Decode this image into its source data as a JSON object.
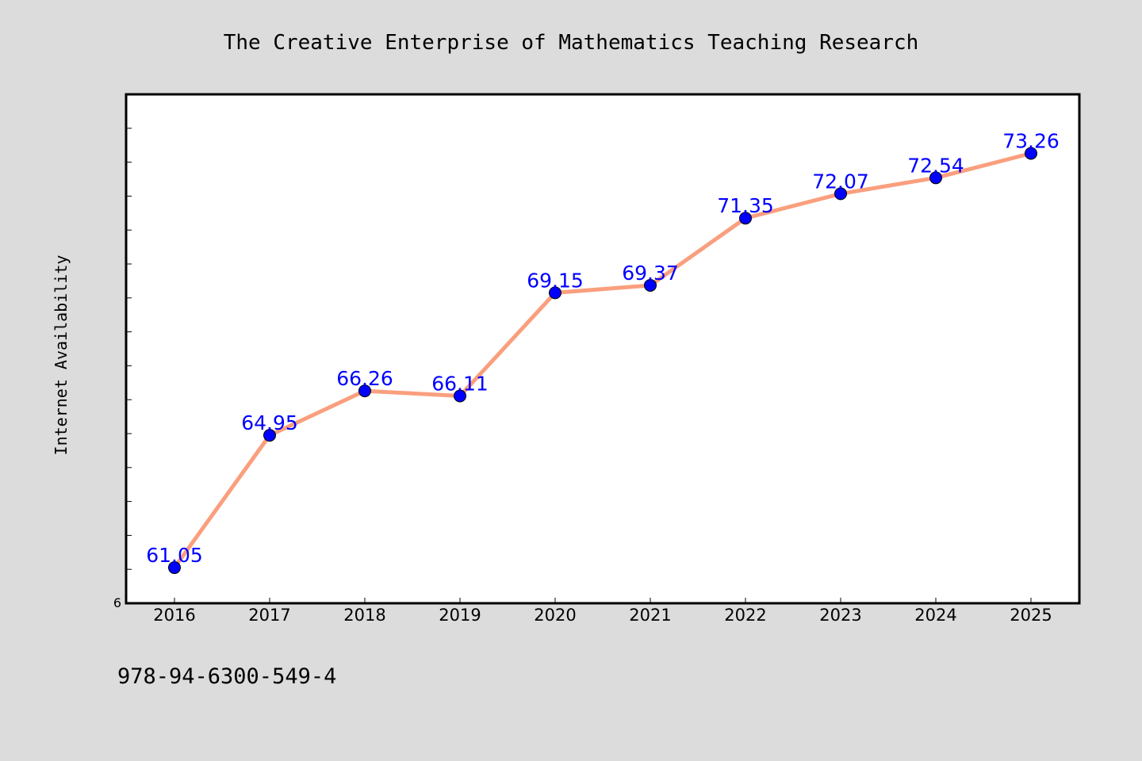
{
  "chart_data": {
    "type": "line",
    "title": "The Creative Enterprise of Mathematics Teaching Research",
    "xlabel": "",
    "ylabel": "Internet Availability",
    "categories": [
      "2016",
      "2017",
      "2018",
      "2019",
      "2020",
      "2021",
      "2022",
      "2023",
      "2024",
      "2025"
    ],
    "series": [
      {
        "values": [
          61.05,
          64.95,
          66.26,
          66.11,
          69.15,
          69.37,
          71.35,
          72.07,
          72.54,
          73.26
        ]
      }
    ],
    "data_labels": [
      "61.05",
      "64.95",
      "66.26",
      "66.11",
      "69.15",
      "69.37",
      "71.35",
      "72.07",
      "72.54",
      "73.26"
    ],
    "y_tick_labels": [
      "6"
    ],
    "ylim": [
      60,
      75
    ],
    "grid": false,
    "legend": false,
    "colors": {
      "line": "#fa9f7e",
      "marker": "#0000ff",
      "marker_edge": "#000000",
      "data_label": "#0000ff",
      "background": "#dcdcdc",
      "plot_background": "#ffffff"
    }
  },
  "footer": {
    "isbn": "978-94-6300-549-4"
  }
}
